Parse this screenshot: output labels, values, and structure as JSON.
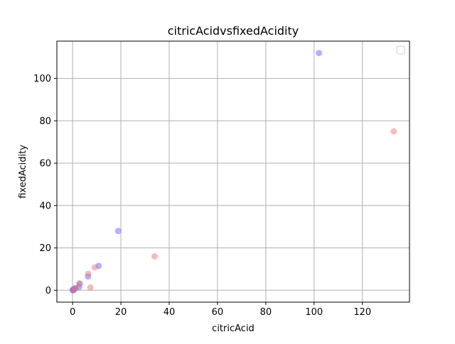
{
  "chart_data": {
    "type": "scatter",
    "title": "citricAcidvsfixedAcidity",
    "xlabel": "citricAcid",
    "ylabel": "fixedAcidity",
    "xlim": [
      -6.5,
      139.5
    ],
    "ylim": [
      -5.6,
      117.6
    ],
    "xticks": [
      0,
      20,
      40,
      60,
      80,
      100,
      120
    ],
    "yticks": [
      0,
      20,
      40,
      60,
      80,
      100
    ],
    "grid": true,
    "legend": "top-right",
    "series": [
      {
        "color": "#6666ff",
        "points": [
          {
            "x": 102,
            "y": 112
          },
          {
            "x": 18.9,
            "y": 28
          },
          {
            "x": 10.8,
            "y": 11.5
          },
          {
            "x": 6.4,
            "y": 6.5
          },
          {
            "x": 2.9,
            "y": 3.2
          },
          {
            "x": 2.7,
            "y": 1.5
          },
          {
            "x": 1.1,
            "y": 1.0
          },
          {
            "x": 0.6,
            "y": 0.6
          },
          {
            "x": 0.2,
            "y": 0.3
          },
          {
            "x": 0.0,
            "y": 0.1
          },
          {
            "x": 0.4,
            "y": 0.0
          }
        ]
      },
      {
        "color": "#ee7777",
        "points": [
          {
            "x": 133,
            "y": 75
          },
          {
            "x": 34,
            "y": 16
          },
          {
            "x": 9.2,
            "y": 10.8
          },
          {
            "x": 6.5,
            "y": 7.8
          },
          {
            "x": 7.4,
            "y": 1.3
          },
          {
            "x": 2.9,
            "y": 3.0
          },
          {
            "x": 1.2,
            "y": 0.9
          },
          {
            "x": 0.3,
            "y": 0.2
          }
        ]
      }
    ]
  }
}
